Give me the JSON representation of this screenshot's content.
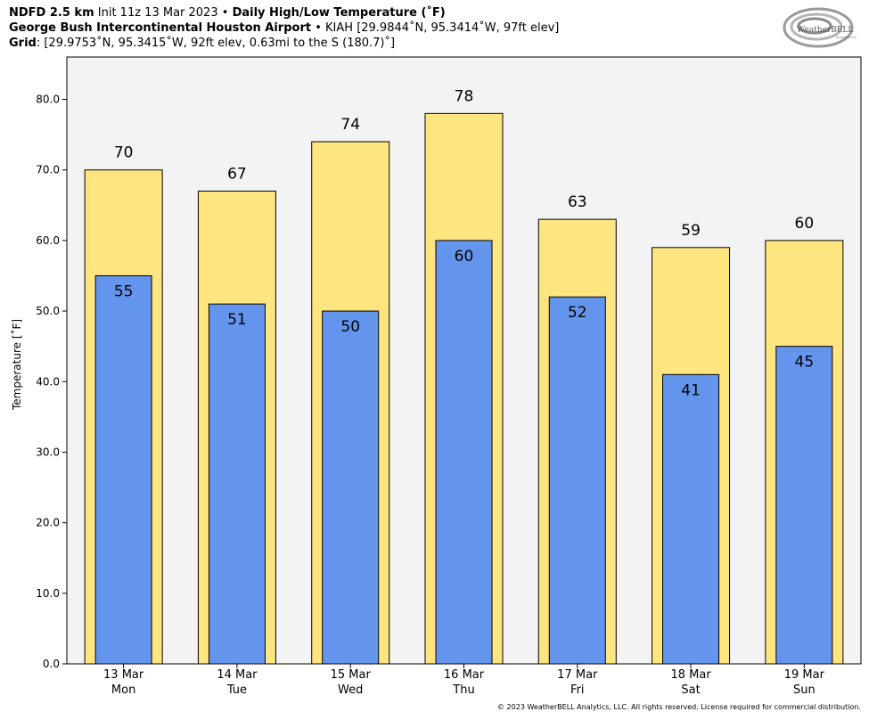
{
  "header": {
    "line1": {
      "model": "NDFD 2.5 km",
      "init": "Init 11z 13 Mar 2023",
      "sep": "•",
      "product": "Daily High/Low Temperature (˚F)"
    },
    "line2": {
      "station_name": "George Bush Intercontinental Houston Airport",
      "sep": "•",
      "station_info": "KIAH [29.9844˚N, 95.3414˚W, 97ft elev]"
    },
    "line3": {
      "grid_label": "Grid",
      "grid_info": ": [29.9753˚N, 95.3415˚W, 92ft elev, 0.63mi to the S (180.7)˚]"
    }
  },
  "logo": {
    "text": "WeatherBELL",
    "subtext": "Analytics LLC"
  },
  "footer": "© 2023 WeatherBELL Analytics, LLC. All rights reserved. License required for commercial distribution.",
  "colors": {
    "high_bar": "#ffe57f",
    "low_bar": "#6495ed",
    "plot_bg": "#f4f3f4"
  },
  "chart_data": {
    "type": "bar",
    "ylabel": "Temperature [˚F]",
    "ylim": [
      0,
      86
    ],
    "yticks": [
      "0.0",
      "10.0",
      "20.0",
      "30.0",
      "40.0",
      "50.0",
      "60.0",
      "70.0",
      "80.0"
    ],
    "categories": [
      {
        "date": "13 Mar",
        "day": "Mon"
      },
      {
        "date": "14 Mar",
        "day": "Tue"
      },
      {
        "date": "15 Mar",
        "day": "Wed"
      },
      {
        "date": "16 Mar",
        "day": "Thu"
      },
      {
        "date": "17 Mar",
        "day": "Fri"
      },
      {
        "date": "18 Mar",
        "day": "Sat"
      },
      {
        "date": "19 Mar",
        "day": "Sun"
      }
    ],
    "series": [
      {
        "key": "high",
        "values": [
          70,
          67,
          74,
          78,
          63,
          59,
          60
        ]
      },
      {
        "key": "low",
        "values": [
          55,
          51,
          50,
          60,
          52,
          41,
          45
        ]
      }
    ],
    "grid": false
  }
}
